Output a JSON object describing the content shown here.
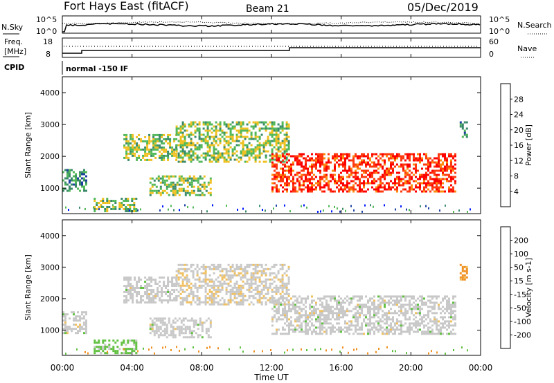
{
  "header": {
    "station": "Fort Hays East (fitACF)",
    "beam": "Beam 21",
    "date": "05/Dec/2019"
  },
  "top_panels": {
    "nsky_label": "N.Sky",
    "nsky_tick_high": "10^5",
    "nsky_tick_low": "10^0",
    "nsearch_label": "N.Search",
    "nsearch_tick_high": "10^5",
    "nsearch_tick_low": "10^0",
    "freq_label_1": "Freq.",
    "freq_label_2": "[MHz]",
    "freq_tick_high": "18",
    "freq_tick_low": "8",
    "nave_label": "Nave",
    "nave_tick_high": "60",
    "nave_tick_low": "0",
    "cpid_label": "CPID",
    "cpid_text": "normal -150 IF"
  },
  "chart_data": [
    {
      "type": "heatmap",
      "title": "Power",
      "ylabel": "Slant Range [km]",
      "xlabel": "Time UT",
      "ylim": [
        200,
        4500
      ],
      "yticks": [
        "1000",
        "2000",
        "3000",
        "4000"
      ],
      "xticks": [
        "00:00",
        "04:00",
        "08:00",
        "12:00",
        "16:00",
        "20:00",
        "00:00"
      ],
      "colorbar": {
        "label": "Power [dB]",
        "ticks": [
          "4",
          "8",
          "12",
          "16",
          "20",
          "24",
          "28"
        ],
        "colors": [
          "#0018ff",
          "#1c3fa0",
          "#3a8a6a",
          "#52b858",
          "#f0c020",
          "#ff8a10",
          "#ff3a10",
          "#ff0000"
        ]
      },
      "echo_regions": [
        {
          "name": "morning_near",
          "t_start_h": 0.0,
          "t_end_h": 1.4,
          "range_km": [
            900,
            1600
          ],
          "level": 2
        },
        {
          "name": "morning_low",
          "t_start_h": 1.8,
          "t_end_h": 4.2,
          "range_km": [
            300,
            700
          ],
          "level": 3
        },
        {
          "name": "arc_early",
          "t_start_h": 3.5,
          "t_end_h": 6.5,
          "range_km": [
            1900,
            2700
          ],
          "level": 3
        },
        {
          "name": "mid_band",
          "t_start_h": 5.0,
          "t_end_h": 8.5,
          "range_km": [
            800,
            1400
          ],
          "level": 3
        },
        {
          "name": "high_arc",
          "t_start_h": 6.5,
          "t_end_h": 13.0,
          "range_km": [
            1800,
            3100
          ],
          "level": 3
        },
        {
          "name": "main_band",
          "t_start_h": 12.0,
          "t_end_h": 22.5,
          "range_km": [
            900,
            2100
          ],
          "level": 6
        },
        {
          "name": "late_high",
          "t_start_h": 22.8,
          "t_end_h": 23.2,
          "range_km": [
            2600,
            3100
          ],
          "level": 2
        }
      ]
    },
    {
      "type": "heatmap",
      "title": "Velocity",
      "ylabel": "Slant Range [km]",
      "xlabel": "Time UT",
      "ylim": [
        200,
        4500
      ],
      "yticks": [
        "1000",
        "2000",
        "3000",
        "4000"
      ],
      "xticks": [
        "00:00",
        "04:00",
        "08:00",
        "12:00",
        "16:00",
        "20:00",
        "00:00"
      ],
      "colorbar": {
        "label": "Velocity [m s-1]",
        "ticks": [
          "200",
          "100",
          "50",
          "15",
          "-15",
          "-50",
          "-100",
          "-200"
        ],
        "colors": [
          "#0018c0",
          "#2a60a8",
          "#3a8a5a",
          "#60c040",
          "#c8c8c8",
          "#f0c060",
          "#f09020",
          "#f05010",
          "#ff0000"
        ]
      },
      "echo_regions": [
        {
          "name": "morning_near",
          "t_start_h": 0.0,
          "t_end_h": 1.4,
          "range_km": [
            900,
            1600
          ],
          "class": "gray"
        },
        {
          "name": "morning_low",
          "t_start_h": 1.8,
          "t_end_h": 4.2,
          "range_km": [
            300,
            700
          ],
          "class": "green"
        },
        {
          "name": "arc_early",
          "t_start_h": 3.5,
          "t_end_h": 6.5,
          "range_km": [
            1900,
            2700
          ],
          "class": "gray"
        },
        {
          "name": "mid_band",
          "t_start_h": 5.0,
          "t_end_h": 8.5,
          "range_km": [
            800,
            1400
          ],
          "class": "gray"
        },
        {
          "name": "high_arc",
          "t_start_h": 6.5,
          "t_end_h": 13.0,
          "range_km": [
            1800,
            3100
          ],
          "class": "gray-orange"
        },
        {
          "name": "main_band",
          "t_start_h": 12.0,
          "t_end_h": 22.5,
          "range_km": [
            900,
            2100
          ],
          "class": "gray"
        },
        {
          "name": "late_high",
          "t_start_h": 22.8,
          "t_end_h": 23.2,
          "range_km": [
            2600,
            3100
          ],
          "class": "orange"
        }
      ]
    }
  ]
}
